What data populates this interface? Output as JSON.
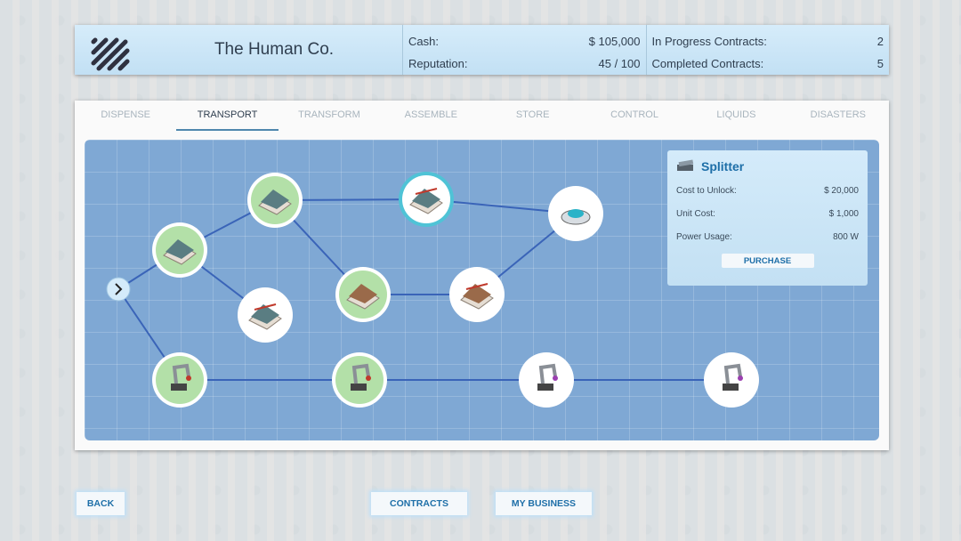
{
  "header": {
    "company": "The Human Co.",
    "cash_label": "Cash:",
    "cash": "$ 105,000",
    "reputation_label": "Reputation:",
    "reputation": "45 / 100",
    "in_progress_label": "In Progress Contracts:",
    "in_progress": "2",
    "completed_label": "Completed Contracts:",
    "completed": "5"
  },
  "tabs": [
    {
      "label": "DISPENSE"
    },
    {
      "label": "TRANSPORT",
      "active": true
    },
    {
      "label": "TRANSFORM"
    },
    {
      "label": "ASSEMBLE"
    },
    {
      "label": "STORE"
    },
    {
      "label": "CONTROL"
    },
    {
      "label": "LIQUIDS"
    },
    {
      "label": "DISASTERS"
    }
  ],
  "tree": {
    "nodes": [
      {
        "id": "n1",
        "state": "unlocked",
        "icon": "conveyor-icon"
      },
      {
        "id": "n2",
        "state": "unlocked",
        "icon": "ramp-conveyor-icon"
      },
      {
        "id": "n3",
        "state": "locked",
        "icon": "conveyor-gate-icon"
      },
      {
        "id": "n4",
        "state": "selected",
        "icon": "splitter-icon"
      },
      {
        "id": "n5",
        "state": "locked",
        "icon": "turntable-icon"
      },
      {
        "id": "n6",
        "state": "unlocked",
        "icon": "roller-conveyor-icon"
      },
      {
        "id": "n7",
        "state": "locked",
        "icon": "sorter-icon"
      },
      {
        "id": "n8",
        "state": "unlocked",
        "icon": "robot-arm-icon"
      },
      {
        "id": "n9",
        "state": "unlocked",
        "icon": "robot-arm-icon"
      },
      {
        "id": "n10",
        "state": "locked",
        "icon": "robot-arm-icon"
      },
      {
        "id": "n11",
        "state": "locked",
        "icon": "robot-arm-icon"
      }
    ],
    "edges": [
      [
        "start",
        "n1"
      ],
      [
        "start",
        "n8"
      ],
      [
        "n1",
        "n2"
      ],
      [
        "n1",
        "n3"
      ],
      [
        "n2",
        "n4"
      ],
      [
        "n2",
        "n6"
      ],
      [
        "n4",
        "n5"
      ],
      [
        "n6",
        "n7"
      ],
      [
        "n7",
        "n5"
      ],
      [
        "n8",
        "n9"
      ],
      [
        "n9",
        "n10"
      ],
      [
        "n10",
        "n11"
      ]
    ]
  },
  "info": {
    "title": "Splitter",
    "icon": "splitter-icon",
    "cost_label": "Cost to Unlock:",
    "cost": "$ 20,000",
    "unit_label": "Unit Cost:",
    "unit": "$ 1,000",
    "power_label": "Power Usage:",
    "power": "800 W",
    "purchase": "PURCHASE"
  },
  "footer": {
    "back": "BACK",
    "contracts": "CONTRACTS",
    "my_business": "MY BUSINESS"
  },
  "colors": {
    "unlocked": "#b3e0a8",
    "locked": "#ffffff",
    "selected_ring": "#4fc3d6",
    "edge": "#3a64b8",
    "accent": "#1e6fa8"
  }
}
